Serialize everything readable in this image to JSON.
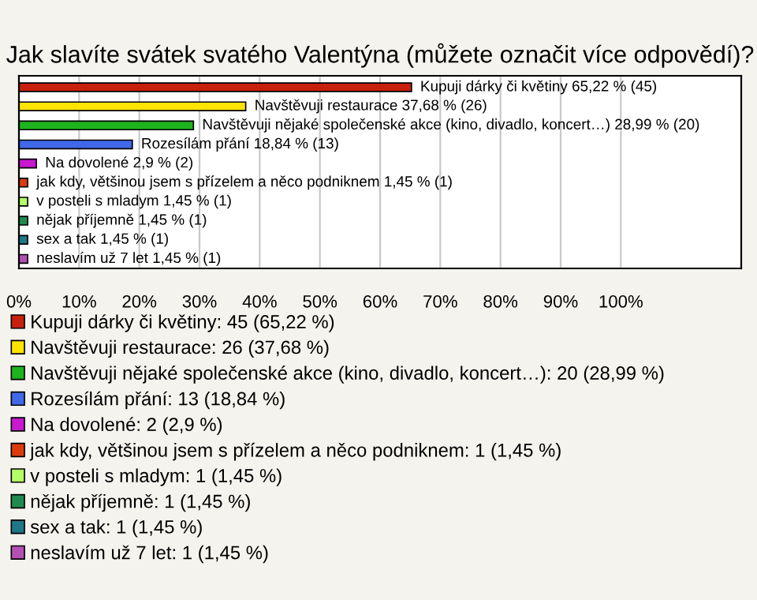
{
  "chart_data": {
    "type": "bar",
    "orientation": "horizontal",
    "title": "Jak slavíte svátek svatého Valentýna (můžete označit více odpovědí)?",
    "categories": [
      null,
      null,
      null,
      null,
      null,
      null,
      null,
      null,
      null,
      null
    ],
    "series": [
      {
        "name": "Kupuji dárky či květiny: 45 (65,22 %)",
        "color": "#c8200c",
        "values": [
          65.22,
          null,
          null,
          null,
          null,
          null,
          null,
          null,
          null,
          null
        ],
        "value_labels": [
          "Kupuji dárky či květiny 65,22 % (45)",
          null,
          null,
          null,
          null,
          null,
          null,
          null,
          null,
          null
        ]
      },
      {
        "name": "Navštěvuji restaurace: 26 (37,68 %)",
        "color": "#ffe400",
        "values": [
          null,
          37.68,
          null,
          null,
          null,
          null,
          null,
          null,
          null,
          null
        ],
        "value_labels": [
          null,
          "Navštěvuji restaurace 37,68 % (26)",
          null,
          null,
          null,
          null,
          null,
          null,
          null,
          null
        ]
      },
      {
        "name": "Navštěvuji nějaké společenské akce (kino, divadlo, koncert…): 20 (28,99 %)",
        "color": "#1eb41e",
        "values": [
          null,
          null,
          28.99,
          null,
          null,
          null,
          null,
          null,
          null,
          null
        ],
        "value_labels": [
          null,
          null,
          "Navštěvuji nějaké společenské akce (kino, divadlo, koncert…) 28,99 % (20)",
          null,
          null,
          null,
          null,
          null,
          null,
          null
        ]
      },
      {
        "name": "Rozesílám přání: 13 (18,84 %)",
        "color": "#4068e8",
        "values": [
          null,
          null,
          null,
          18.84,
          null,
          null,
          null,
          null,
          null,
          null
        ],
        "value_labels": [
          null,
          null,
          null,
          "Rozesílám přání 18,84 % (13)",
          null,
          null,
          null,
          null,
          null,
          null
        ]
      },
      {
        "name": "Na dovolené: 2 (2,9 %)",
        "color": "#c818d0",
        "values": [
          null,
          null,
          null,
          null,
          2.9,
          null,
          null,
          null,
          null,
          null
        ],
        "value_labels": [
          null,
          null,
          null,
          null,
          "Na dovolené 2,9 % (2)",
          null,
          null,
          null,
          null,
          null
        ]
      },
      {
        "name": "jak kdy, většinou jsem s přízelem a něco podniknem: 1 (1,45 %)",
        "color": "#dc3c0c",
        "values": [
          null,
          null,
          null,
          null,
          null,
          1.45,
          null,
          null,
          null,
          null
        ],
        "value_labels": [
          null,
          null,
          null,
          null,
          null,
          "jak kdy, většinou jsem s přízelem a něco podniknem 1,45 % (1)",
          null,
          null,
          null,
          null
        ]
      },
      {
        "name": "v posteli s mladym: 1 (1,45 %)",
        "color": "#b4ff64",
        "values": [
          null,
          null,
          null,
          null,
          null,
          null,
          1.45,
          null,
          null,
          null
        ],
        "value_labels": [
          null,
          null,
          null,
          null,
          null,
          null,
          "v posteli s mladym 1,45 % (1)",
          null,
          null,
          null
        ]
      },
      {
        "name": "nějak příjemně: 1 (1,45 %)",
        "color": "#1e8c50",
        "values": [
          null,
          null,
          null,
          null,
          null,
          null,
          null,
          1.45,
          null,
          null
        ],
        "value_labels": [
          null,
          null,
          null,
          null,
          null,
          null,
          null,
          "nějak příjemně 1,45 % (1)",
          null,
          null
        ]
      },
      {
        "name": "sex a tak: 1 (1,45 %)",
        "color": "#1e7888",
        "values": [
          null,
          null,
          null,
          null,
          null,
          null,
          null,
          null,
          1.45,
          null
        ],
        "value_labels": [
          null,
          null,
          null,
          null,
          null,
          null,
          null,
          null,
          "sex a tak 1,45 % (1)",
          null
        ]
      },
      {
        "name": "neslavím už 7 let: 1 (1,45 %)",
        "color": "#b450b4",
        "values": [
          null,
          null,
          null,
          null,
          null,
          null,
          null,
          null,
          null,
          1.45
        ],
        "value_labels": [
          null,
          null,
          null,
          null,
          null,
          null,
          null,
          null,
          null,
          "neslavím už 7 let 1,45 % (1)"
        ]
      }
    ],
    "xlim": [
      0,
      120
    ],
    "xticks": [
      {
        "value": 0,
        "label": "0%"
      },
      {
        "value": 10,
        "label": "10%"
      },
      {
        "value": 20,
        "label": "20%"
      },
      {
        "value": 30,
        "label": "30%"
      },
      {
        "value": 40,
        "label": "40%"
      },
      {
        "value": 50,
        "label": "50%"
      },
      {
        "value": 60,
        "label": "60%"
      },
      {
        "value": 70,
        "label": "70%"
      },
      {
        "value": 80,
        "label": "80%"
      },
      {
        "value": 90,
        "label": "90%"
      },
      {
        "value": 100,
        "label": "100%"
      }
    ],
    "grid": "x",
    "legend": "bottom"
  }
}
